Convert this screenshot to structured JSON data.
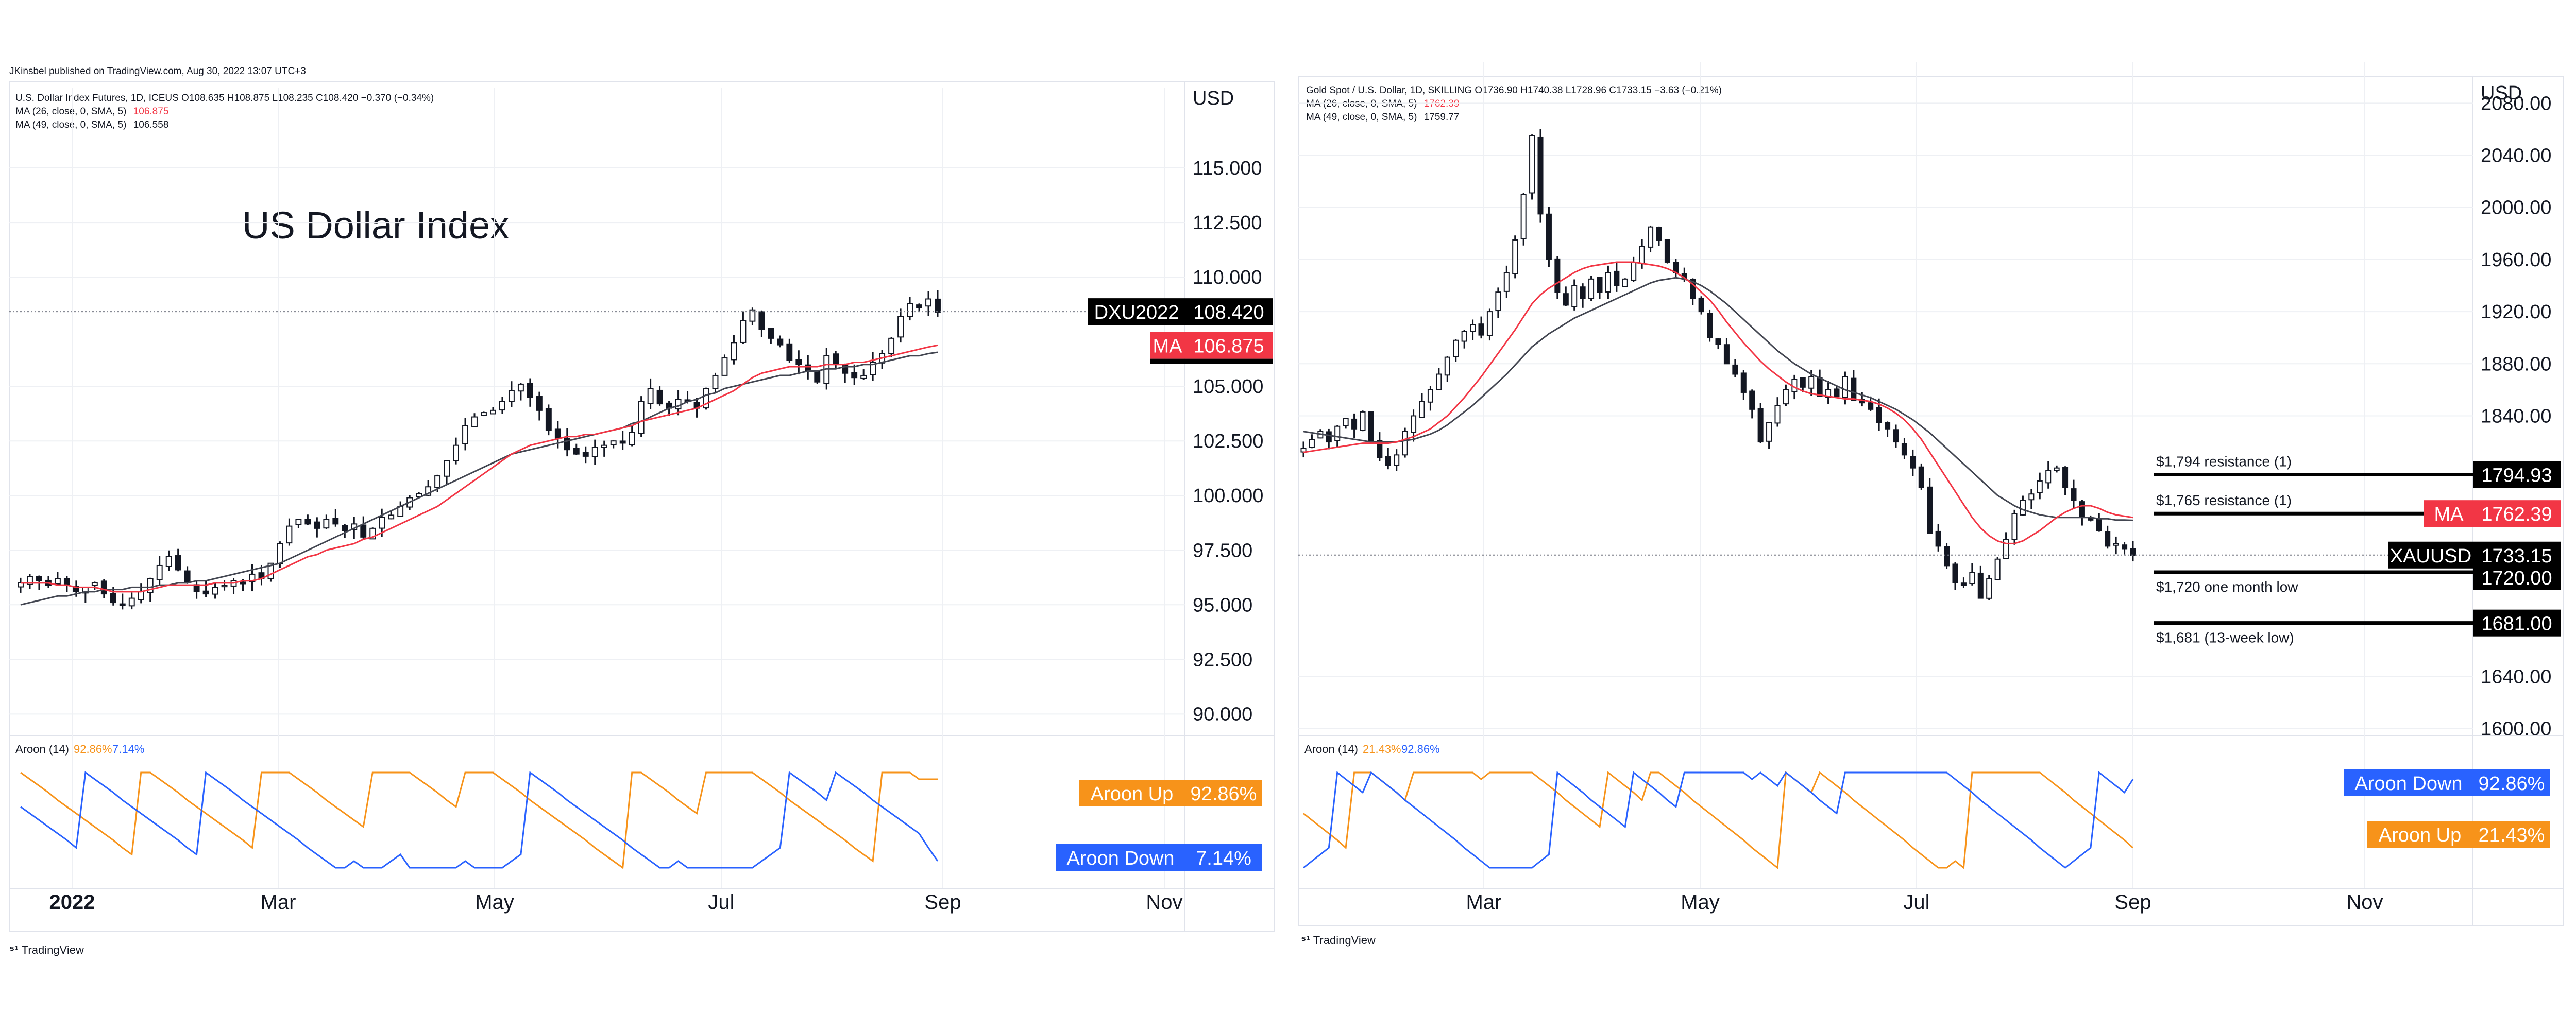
{
  "published": "JKinsbel published on TradingView.com, Aug 30, 2022 13:07 UTC+3",
  "tv_label": "TradingView",
  "colors": {
    "up": "#131722",
    "down": "#131722",
    "ma26": "#f23645",
    "ma49": "#434651",
    "aroon_up": "#f7931a",
    "aroon_down": "#2962ff",
    "tag_black": "#000000",
    "tag_red": "#f23645",
    "grid": "#eef0f4",
    "axis_text": "#131722"
  },
  "chart_data": [
    {
      "type": "candlestick",
      "title": "US Dollar Index",
      "header_line": "U.S. Dollar Index Futures, 1D, ICEUS  O108.635 H108.875 L108.235 C108.420 −0.370 (−0.34%)",
      "ma_lines": [
        {
          "label": "MA (26, close, 0, SMA, 5)",
          "value": "106.875"
        },
        {
          "label": "MA (49, close, 0, SMA, 5)",
          "value": "106.558"
        }
      ],
      "currency": "USD",
      "y_ticks": [
        "115.000",
        "112.500",
        "110.000",
        "105.000",
        "102.500",
        "100.000",
        "97.500",
        "95.000",
        "92.500",
        "90.000"
      ],
      "ylim": [
        88.5,
        117.5
      ],
      "x_ticks": [
        "2022",
        "Mar",
        "May",
        "Jul",
        "Sep",
        "Nov"
      ],
      "tags": [
        {
          "name": "DXU2022",
          "value": "108.420",
          "price": 108.42,
          "color": "black"
        },
        {
          "name": "MA",
          "value": "106.875",
          "price": 106.875,
          "color": "red"
        }
      ],
      "last_price": 108.42,
      "closes": [
        96.0,
        96.3,
        96.1,
        95.9,
        96.2,
        95.9,
        95.6,
        95.8,
        96.0,
        95.5,
        95.1,
        95.0,
        95.3,
        95.6,
        96.2,
        96.8,
        97.2,
        96.6,
        96.0,
        95.6,
        95.5,
        95.8,
        95.9,
        96.1,
        96.0,
        96.4,
        96.2,
        96.9,
        97.8,
        98.6,
        98.9,
        98.7,
        98.5,
        98.9,
        98.7,
        98.4,
        98.7,
        98.1,
        98.5,
        99.0,
        99.1,
        99.5,
        99.9,
        100.1,
        100.4,
        100.9,
        101.6,
        102.3,
        103.2,
        103.6,
        103.8,
        103.9,
        104.3,
        104.8,
        105.1,
        104.5,
        103.9,
        103.0,
        102.6,
        102.1,
        101.9,
        101.8,
        102.2,
        102.3,
        102.5,
        102.4,
        102.9,
        104.3,
        104.9,
        104.2,
        104.0,
        104.4,
        104.3,
        104.0,
        104.9,
        105.5,
        106.3,
        107.0,
        108.0,
        108.5,
        107.6,
        107.2,
        106.9,
        106.2,
        106.0,
        105.7,
        105.2,
        106.4,
        106.0,
        105.6,
        105.4,
        105.5,
        106.1,
        106.5,
        107.2,
        108.2,
        108.8,
        108.6,
        109.0,
        108.4
      ],
      "ma26": [
        96.0,
        96.0,
        96.0,
        96.0,
        95.9,
        95.9,
        95.8,
        95.8,
        95.8,
        95.7,
        95.6,
        95.6,
        95.6,
        95.6,
        95.7,
        95.8,
        95.9,
        95.9,
        95.9,
        95.9,
        95.9,
        96.0,
        96.0,
        96.0,
        96.1,
        96.1,
        96.2,
        96.4,
        96.6,
        96.8,
        97.0,
        97.2,
        97.3,
        97.5,
        97.6,
        97.7,
        97.8,
        98.0,
        98.1,
        98.3,
        98.5,
        98.7,
        98.9,
        99.1,
        99.3,
        99.5,
        99.8,
        100.1,
        100.4,
        100.7,
        101.0,
        101.3,
        101.6,
        101.9,
        102.1,
        102.3,
        102.4,
        102.5,
        102.6,
        102.7,
        102.7,
        102.8,
        102.8,
        102.9,
        103.0,
        103.1,
        103.2,
        103.4,
        103.5,
        103.6,
        103.7,
        103.8,
        103.9,
        104.0,
        104.2,
        104.4,
        104.6,
        104.8,
        105.1,
        105.4,
        105.6,
        105.7,
        105.8,
        105.9,
        105.9,
        105.9,
        105.9,
        106.0,
        106.0,
        106.0,
        106.1,
        106.1,
        106.2,
        106.3,
        106.4,
        106.5,
        106.6,
        106.7,
        106.8,
        106.88
      ],
      "ma49": [
        95.0,
        95.1,
        95.2,
        95.3,
        95.4,
        95.4,
        95.5,
        95.6,
        95.6,
        95.7,
        95.7,
        95.7,
        95.8,
        95.8,
        95.8,
        95.9,
        95.9,
        96.0,
        96.0,
        96.1,
        96.1,
        96.2,
        96.3,
        96.4,
        96.5,
        96.6,
        96.7,
        96.8,
        96.9,
        97.1,
        97.3,
        97.5,
        97.7,
        97.9,
        98.1,
        98.3,
        98.5,
        98.7,
        98.9,
        99.1,
        99.3,
        99.5,
        99.7,
        99.9,
        100.1,
        100.3,
        100.5,
        100.7,
        100.9,
        101.1,
        101.3,
        101.5,
        101.7,
        101.9,
        102.0,
        102.1,
        102.2,
        102.3,
        102.4,
        102.5,
        102.6,
        102.7,
        102.8,
        102.9,
        103.0,
        103.1,
        103.3,
        103.4,
        103.6,
        103.8,
        104.0,
        104.1,
        104.3,
        104.4,
        104.6,
        104.7,
        104.9,
        105.0,
        105.1,
        105.2,
        105.3,
        105.4,
        105.5,
        105.5,
        105.6,
        105.7,
        105.7,
        105.8,
        105.8,
        105.9,
        105.9,
        106.0,
        106.0,
        106.1,
        106.2,
        106.3,
        106.4,
        106.4,
        106.5,
        106.56
      ],
      "aroon": {
        "label": "Aroon (14)",
        "up_value": "92.86%",
        "down_value": "7.14%",
        "up_label": "Aroon Up",
        "down_label": "Aroon Down",
        "up": [
          100,
          93,
          86,
          79,
          71,
          64,
          57,
          50,
          43,
          36,
          29,
          21,
          14,
          100,
          100,
          93,
          86,
          79,
          71,
          64,
          57,
          50,
          43,
          36,
          29,
          21,
          100,
          100,
          100,
          100,
          93,
          86,
          79,
          71,
          64,
          57,
          50,
          43,
          100,
          100,
          100,
          100,
          100,
          93,
          86,
          79,
          71,
          64,
          100,
          100,
          100,
          100,
          93,
          86,
          79,
          71,
          64,
          57,
          50,
          43,
          36,
          29,
          21,
          14,
          7,
          0,
          100,
          100,
          93,
          86,
          79,
          71,
          64,
          57,
          100,
          100,
          100,
          100,
          100,
          100,
          93,
          86,
          79,
          71,
          64,
          57,
          50,
          43,
          36,
          29,
          21,
          14,
          7,
          100,
          100,
          100,
          100,
          93,
          93,
          93
        ],
        "down": [
          64,
          57,
          50,
          43,
          36,
          29,
          21,
          100,
          93,
          86,
          79,
          71,
          64,
          57,
          50,
          43,
          36,
          29,
          21,
          14,
          100,
          93,
          86,
          79,
          71,
          64,
          57,
          50,
          43,
          36,
          29,
          21,
          14,
          7,
          0,
          0,
          7,
          0,
          0,
          0,
          7,
          14,
          0,
          0,
          0,
          0,
          0,
          0,
          7,
          0,
          0,
          0,
          0,
          7,
          14,
          100,
          93,
          86,
          79,
          71,
          64,
          57,
          50,
          43,
          36,
          29,
          21,
          14,
          7,
          0,
          0,
          7,
          0,
          0,
          0,
          0,
          0,
          0,
          0,
          0,
          7,
          14,
          21,
          100,
          93,
          86,
          79,
          71,
          100,
          93,
          86,
          79,
          71,
          64,
          57,
          50,
          43,
          36,
          21,
          7
        ]
      }
    },
    {
      "type": "candlestick",
      "title": "",
      "header_line": "Gold Spot / U.S. Dollar, 1D, SKILLING  O1736.90 H1740.38 L1728.96 C1733.15 −3.63 (−0.21%)",
      "ma_lines": [
        {
          "label": "MA (26, close, 0, SMA, 5)",
          "value": "1762.39"
        },
        {
          "label": "MA (49, close, 0, SMA, 5)",
          "value": "1759.77"
        }
      ],
      "currency": "USD",
      "y_ticks": [
        "2080.00",
        "2040.00",
        "2000.00",
        "1960.00",
        "1920.00",
        "1880.00",
        "1840.00",
        "1640.00",
        "1600.00"
      ],
      "ylim": [
        1586,
        2092
      ],
      "x_ticks": [
        "Mar",
        "May",
        "Jul",
        "Sep",
        "Nov"
      ],
      "levels": [
        {
          "label": "$1,794 resistance (1)",
          "price": 1794.93,
          "value": "1794.93",
          "tag": "black"
        },
        {
          "label": "$1,765 resistance (1)",
          "price": 1765,
          "value": "1762.39",
          "tag": "red",
          "tag_name": "MA"
        },
        {
          "label": "$1,720 one month low",
          "price": 1720,
          "value": "1720.00",
          "tag": "black-under"
        },
        {
          "label": "$1,681 (13-week low)",
          "price": 1681,
          "value": "1681.00",
          "tag": "black"
        }
      ],
      "tags": [
        {
          "name": "XAUUSD",
          "value": "1733.15",
          "price": 1733.15,
          "color": "black"
        }
      ],
      "last_price": 1733.15,
      "closes": [
        1815,
        1822,
        1828,
        1820,
        1832,
        1838,
        1830,
        1843,
        1820,
        1808,
        1802,
        1810,
        1828,
        1840,
        1851,
        1860,
        1872,
        1885,
        1898,
        1905,
        1910,
        1902,
        1920,
        1935,
        1950,
        1975,
        2010,
        2055,
        1995,
        1960,
        1935,
        1925,
        1940,
        1930,
        1945,
        1935,
        1950,
        1940,
        1945,
        1958,
        1970,
        1985,
        1975,
        1958,
        1950,
        1945,
        1930,
        1920,
        1900,
        1895,
        1880,
        1872,
        1858,
        1845,
        1820,
        1835,
        1848,
        1860,
        1868,
        1862,
        1870,
        1855,
        1860,
        1855,
        1870,
        1852,
        1850,
        1845,
        1835,
        1830,
        1820,
        1810,
        1800,
        1785,
        1750,
        1740,
        1725,
        1712,
        1710,
        1720,
        1700,
        1715,
        1730,
        1745,
        1765,
        1775,
        1780,
        1790,
        1798,
        1800,
        1785,
        1775,
        1762,
        1760,
        1752,
        1740,
        1742,
        1738,
        1733
      ],
      "ma26": [
        1812,
        1813,
        1814,
        1815,
        1816,
        1817,
        1818,
        1819,
        1819,
        1819,
        1819,
        1820,
        1822,
        1824,
        1827,
        1830,
        1835,
        1840,
        1847,
        1854,
        1862,
        1870,
        1879,
        1888,
        1897,
        1906,
        1916,
        1926,
        1933,
        1938,
        1942,
        1946,
        1950,
        1953,
        1955,
        1956,
        1957,
        1958,
        1958,
        1958,
        1957,
        1956,
        1955,
        1953,
        1950,
        1946,
        1941,
        1935,
        1929,
        1921,
        1912,
        1904,
        1896,
        1889,
        1882,
        1876,
        1871,
        1866,
        1862,
        1859,
        1857,
        1856,
        1855,
        1854,
        1853,
        1853,
        1852,
        1851,
        1849,
        1846,
        1842,
        1837,
        1830,
        1822,
        1812,
        1802,
        1792,
        1782,
        1772,
        1762,
        1754,
        1748,
        1744,
        1742,
        1742,
        1744,
        1748,
        1752,
        1757,
        1762,
        1766,
        1769,
        1771,
        1771,
        1769,
        1766,
        1764,
        1763,
        1762
      ],
      "ma49": [
        1828,
        1827,
        1826,
        1825,
        1824,
        1823,
        1822,
        1821,
        1820,
        1820,
        1820,
        1820,
        1821,
        1822,
        1824,
        1826,
        1829,
        1833,
        1838,
        1843,
        1848,
        1854,
        1860,
        1866,
        1872,
        1879,
        1886,
        1893,
        1898,
        1903,
        1907,
        1911,
        1915,
        1918,
        1921,
        1924,
        1927,
        1930,
        1933,
        1936,
        1939,
        1942,
        1944,
        1945,
        1946,
        1945,
        1943,
        1940,
        1936,
        1931,
        1926,
        1920,
        1914,
        1908,
        1902,
        1896,
        1890,
        1885,
        1880,
        1876,
        1872,
        1869,
        1866,
        1863,
        1860,
        1858,
        1856,
        1854,
        1851,
        1848,
        1845,
        1841,
        1837,
        1832,
        1827,
        1821,
        1815,
        1809,
        1803,
        1797,
        1791,
        1785,
        1779,
        1775,
        1771,
        1768,
        1766,
        1764,
        1763,
        1762,
        1762,
        1762,
        1762,
        1762,
        1761,
        1761,
        1760,
        1760,
        1759.77
      ],
      "aroon": {
        "label": "Aroon (14)",
        "up_value": "21.43%",
        "down_value": "92.86%",
        "up_label": "Aroon Up",
        "down_label": "Aroon Down",
        "up": [
          57,
          50,
          43,
          36,
          29,
          21,
          100,
          100,
          100,
          93,
          86,
          79,
          71,
          100,
          100,
          100,
          100,
          100,
          100,
          100,
          100,
          93,
          100,
          100,
          100,
          100,
          100,
          100,
          93,
          86,
          79,
          71,
          64,
          57,
          50,
          43,
          100,
          93,
          86,
          79,
          71,
          100,
          100,
          93,
          86,
          79,
          71,
          64,
          57,
          50,
          43,
          36,
          29,
          21,
          14,
          7,
          0,
          100,
          93,
          86,
          79,
          100,
          93,
          86,
          79,
          71,
          64,
          57,
          50,
          43,
          36,
          29,
          21,
          14,
          7,
          0,
          0,
          7,
          0,
          100,
          100,
          100,
          100,
          100,
          100,
          100,
          100,
          100,
          93,
          86,
          79,
          71,
          64,
          57,
          50,
          43,
          36,
          29,
          21
        ],
        "down": [
          0,
          7,
          14,
          21,
          100,
          93,
          86,
          79,
          100,
          93,
          86,
          79,
          71,
          64,
          57,
          50,
          43,
          36,
          29,
          21,
          14,
          7,
          0,
          0,
          0,
          0,
          0,
          0,
          7,
          14,
          100,
          93,
          86,
          79,
          71,
          64,
          57,
          50,
          43,
          100,
          93,
          86,
          79,
          71,
          64,
          100,
          100,
          100,
          100,
          100,
          100,
          100,
          100,
          93,
          100,
          93,
          86,
          100,
          93,
          86,
          79,
          71,
          64,
          57,
          100,
          100,
          100,
          100,
          100,
          100,
          100,
          100,
          100,
          100,
          100,
          100,
          100,
          93,
          86,
          79,
          71,
          64,
          57,
          50,
          43,
          36,
          29,
          21,
          14,
          7,
          0,
          7,
          14,
          21,
          100,
          93,
          86,
          79,
          93
        ]
      }
    }
  ]
}
